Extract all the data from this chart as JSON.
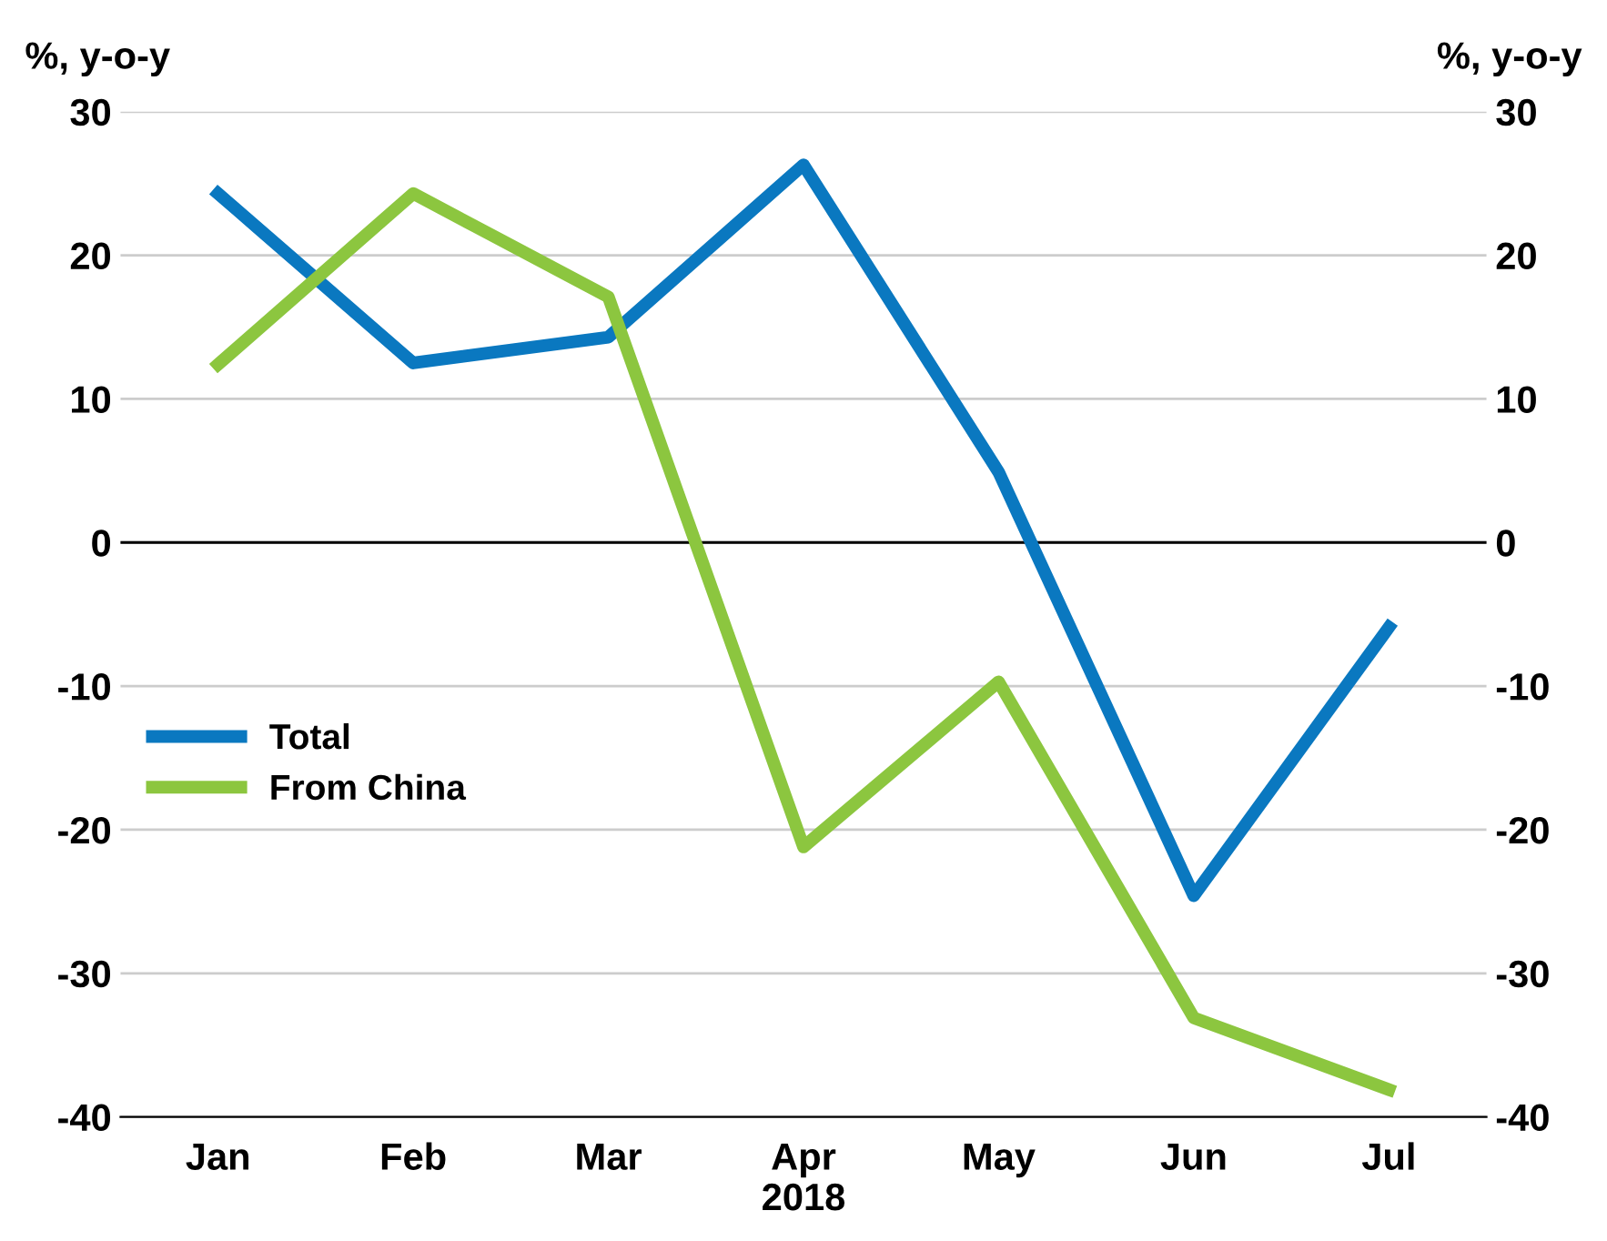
{
  "chart_data": {
    "type": "line",
    "categories": [
      "Jan",
      "Feb",
      "Mar",
      "Apr",
      "May",
      "Jun",
      "Jul"
    ],
    "series": [
      {
        "name": "Total",
        "color": "#0a78c0",
        "values": [
          24.3,
          12.5,
          14.3,
          26.3,
          4.9,
          -24.6,
          -5.9
        ]
      },
      {
        "name": "From China",
        "color": "#8cc63f",
        "values": [
          12.4,
          24.3,
          17.1,
          -21.2,
          -9.7,
          -33.1,
          -38.1
        ]
      }
    ],
    "xlabel": "2018",
    "ylabel": "%, y-o-y",
    "y2label": "%, y-o-y",
    "ylim": [
      -40,
      30
    ],
    "yticks": [
      -40,
      -30,
      -20,
      -10,
      0,
      10,
      20,
      30
    ],
    "y2lim": [
      -40,
      30
    ],
    "y2ticks": [
      -40,
      -30,
      -20,
      -10,
      0,
      10,
      20,
      30
    ],
    "ref_lines": [
      {
        "axis": "y",
        "value": 0,
        "color": "#000000"
      }
    ],
    "grid": "y",
    "legend": "center left",
    "marker": "none",
    "line_style": "solid"
  }
}
